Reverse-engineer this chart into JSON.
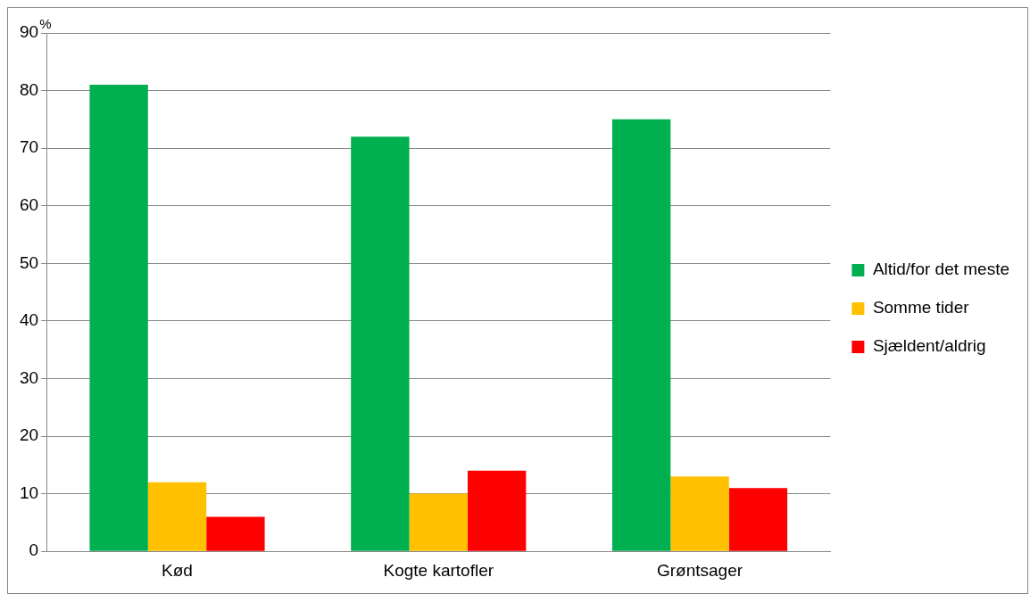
{
  "chart_data": {
    "type": "bar",
    "ylabel": "%",
    "categories": [
      "Kød",
      "Kogte kartofler",
      "Grøntsager"
    ],
    "series": [
      {
        "name": "Altid/for det meste",
        "color": "#00b050",
        "values": [
          81,
          72,
          75
        ]
      },
      {
        "name": "Somme tider",
        "color": "#ffc000",
        "values": [
          12,
          10,
          13
        ]
      },
      {
        "name": "Sjældent/aldrig",
        "color": "#ff0000",
        "values": [
          6,
          14,
          11
        ]
      }
    ],
    "ylim": [
      0,
      90
    ],
    "yticks": [
      0,
      10,
      20,
      30,
      40,
      50,
      60,
      70,
      80,
      90
    ],
    "grid": "y",
    "legend": "right"
  }
}
